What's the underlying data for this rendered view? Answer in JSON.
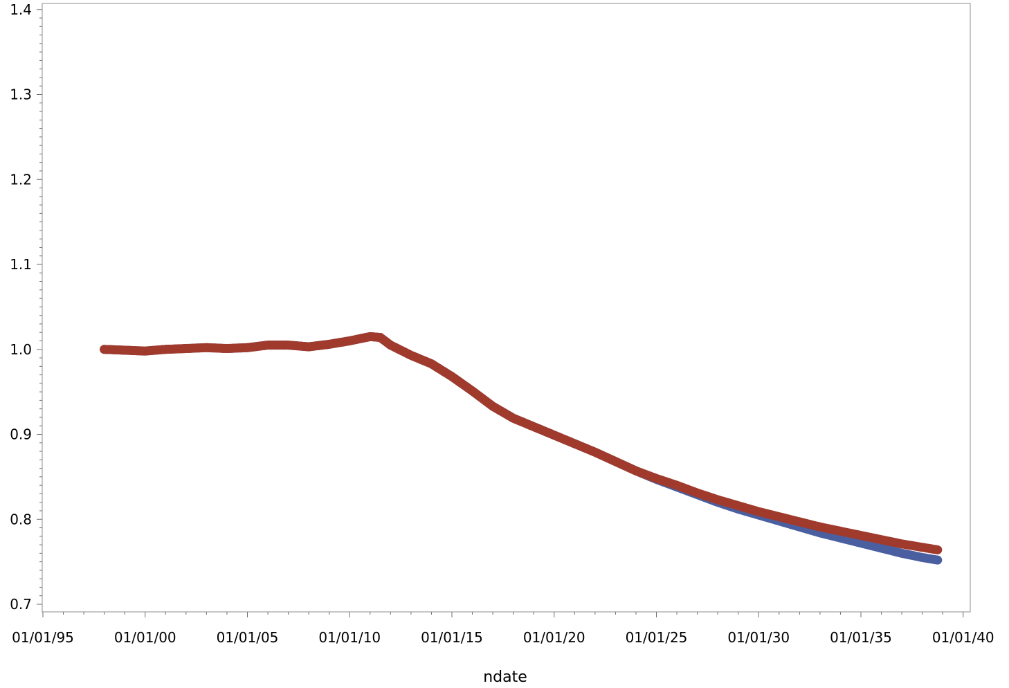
{
  "chart_data": {
    "type": "scatter",
    "xlabel": "ndate",
    "ylabel": "",
    "x_axis": {
      "min_year": 1995,
      "max_year": 2040,
      "major_every_years": 5,
      "minor_every_years": 1,
      "tick_labels": [
        "01/01/95",
        "01/01/00",
        "01/01/05",
        "01/01/10",
        "01/01/15",
        "01/01/20",
        "01/01/25",
        "01/01/30",
        "01/01/35",
        "01/01/40"
      ]
    },
    "y_axis": {
      "min": 0.7,
      "max": 1.4,
      "major_step": 0.1,
      "minor_step": 0.01,
      "tick_labels": [
        "0.7",
        "0.8",
        "0.9",
        "1.0",
        "1.1",
        "1.2",
        "1.3",
        "1.4"
      ]
    },
    "grid": false,
    "series": [
      {
        "color": "#4a5fa0",
        "x": [
          1998.0,
          1999.0,
          2000.0,
          2001.0,
          2002.0,
          2003.0,
          2004.0,
          2005.0,
          2006.0,
          2007.0,
          2008.0,
          2009.0,
          2010.0,
          2011.0,
          2011.5,
          2012.0,
          2013.0,
          2014.0,
          2015.0,
          2016.0,
          2017.0,
          2018.0,
          2019.0,
          2020.0,
          2021.0,
          2022.0,
          2023.0,
          2024.0,
          2025.0,
          2026.0,
          2027.0,
          2028.0,
          2029.0,
          2030.0,
          2031.0,
          2032.0,
          2033.0,
          2034.0,
          2035.0,
          2036.0,
          2037.0,
          2038.0,
          2038.75
        ],
        "y": [
          1.0,
          0.999,
          0.998,
          1.0,
          1.001,
          1.002,
          1.001,
          1.002,
          1.005,
          1.005,
          1.003,
          1.006,
          1.01,
          1.015,
          1.014,
          1.005,
          0.993,
          0.983,
          0.968,
          0.951,
          0.933,
          0.919,
          0.909,
          0.899,
          0.889,
          0.879,
          0.868,
          0.857,
          0.847,
          0.838,
          0.829,
          0.82,
          0.812,
          0.805,
          0.798,
          0.791,
          0.784,
          0.778,
          0.772,
          0.766,
          0.76,
          0.755,
          0.752
        ]
      },
      {
        "color": "#a03a2c",
        "x": [
          1998.0,
          1999.0,
          2000.0,
          2001.0,
          2002.0,
          2003.0,
          2004.0,
          2005.0,
          2006.0,
          2007.0,
          2008.0,
          2009.0,
          2010.0,
          2011.0,
          2011.5,
          2012.0,
          2013.0,
          2014.0,
          2015.0,
          2016.0,
          2017.0,
          2018.0,
          2019.0,
          2020.0,
          2021.0,
          2022.0,
          2023.0,
          2024.0,
          2025.0,
          2026.0,
          2027.0,
          2028.0,
          2029.0,
          2030.0,
          2031.0,
          2032.0,
          2033.0,
          2034.0,
          2035.0,
          2036.0,
          2037.0,
          2038.0,
          2038.75
        ],
        "y": [
          1.0,
          0.999,
          0.998,
          1.0,
          1.001,
          1.002,
          1.001,
          1.002,
          1.005,
          1.005,
          1.003,
          1.006,
          1.01,
          1.015,
          1.014,
          1.005,
          0.993,
          0.983,
          0.968,
          0.951,
          0.933,
          0.919,
          0.909,
          0.899,
          0.889,
          0.879,
          0.868,
          0.857,
          0.848,
          0.84,
          0.831,
          0.823,
          0.816,
          0.809,
          0.803,
          0.797,
          0.791,
          0.786,
          0.781,
          0.776,
          0.771,
          0.767,
          0.764
        ]
      }
    ]
  }
}
